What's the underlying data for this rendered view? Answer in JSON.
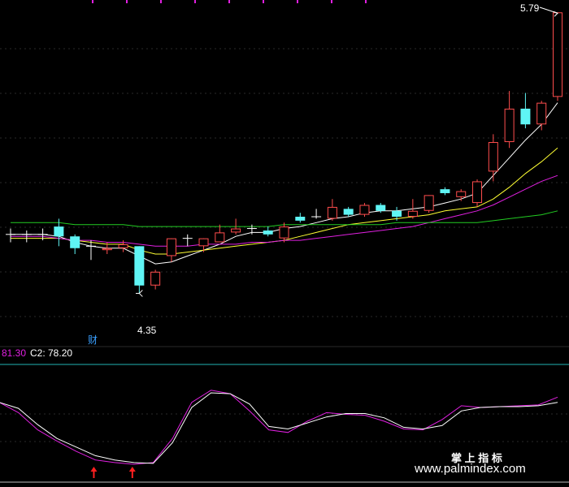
{
  "chart_data": [
    {
      "type": "candlestick",
      "title": "",
      "annotations": {
        "high_label": "5.79",
        "low_label": "4.35",
        "marker_text": "财"
      },
      "ylim": [
        4.18,
        5.82
      ],
      "candles": [
        {
          "open": 4.66,
          "high": 4.69,
          "low": 4.62,
          "close": 4.66,
          "dir": "doji"
        },
        {
          "open": 4.66,
          "high": 4.68,
          "low": 4.62,
          "close": 4.66,
          "dir": "doji"
        },
        {
          "open": 4.66,
          "high": 4.69,
          "low": 4.63,
          "close": 4.66,
          "dir": "doji"
        },
        {
          "open": 4.7,
          "high": 4.74,
          "low": 4.6,
          "close": 4.65,
          "dir": "down"
        },
        {
          "open": 4.65,
          "high": 4.66,
          "low": 4.56,
          "close": 4.59,
          "dir": "down"
        },
        {
          "open": 4.6,
          "high": 4.63,
          "low": 4.53,
          "close": 4.6,
          "dir": "doji"
        },
        {
          "open": 4.58,
          "high": 4.62,
          "low": 4.56,
          "close": 4.59,
          "dir": "up"
        },
        {
          "open": 4.59,
          "high": 4.63,
          "low": 4.57,
          "close": 4.61,
          "dir": "up"
        },
        {
          "open": 4.6,
          "high": 4.6,
          "low": 4.36,
          "close": 4.4,
          "dir": "down"
        },
        {
          "open": 4.4,
          "high": 4.48,
          "low": 4.38,
          "close": 4.47,
          "dir": "up"
        },
        {
          "open": 4.55,
          "high": 4.64,
          "low": 4.52,
          "close": 4.64,
          "dir": "up"
        },
        {
          "open": 4.64,
          "high": 4.66,
          "low": 4.6,
          "close": 4.64,
          "dir": "doji"
        },
        {
          "open": 4.6,
          "high": 4.64,
          "low": 4.57,
          "close": 4.64,
          "dir": "up"
        },
        {
          "open": 4.62,
          "high": 4.71,
          "low": 4.62,
          "close": 4.67,
          "dir": "up"
        },
        {
          "open": 4.67,
          "high": 4.74,
          "low": 4.66,
          "close": 4.69,
          "dir": "up"
        },
        {
          "open": 4.69,
          "high": 4.71,
          "low": 4.66,
          "close": 4.69,
          "dir": "doji"
        },
        {
          "open": 4.68,
          "high": 4.7,
          "low": 4.65,
          "close": 4.66,
          "dir": "down"
        },
        {
          "open": 4.64,
          "high": 4.72,
          "low": 4.62,
          "close": 4.7,
          "dir": "up"
        },
        {
          "open": 4.75,
          "high": 4.77,
          "low": 4.72,
          "close": 4.73,
          "dir": "down"
        },
        {
          "open": 4.75,
          "high": 4.79,
          "low": 4.74,
          "close": 4.75,
          "dir": "doji"
        },
        {
          "open": 4.74,
          "high": 4.84,
          "low": 4.73,
          "close": 4.8,
          "dir": "up"
        },
        {
          "open": 4.79,
          "high": 4.8,
          "low": 4.75,
          "close": 4.76,
          "dir": "down"
        },
        {
          "open": 4.76,
          "high": 4.82,
          "low": 4.75,
          "close": 4.81,
          "dir": "up"
        },
        {
          "open": 4.81,
          "high": 4.82,
          "low": 4.77,
          "close": 4.78,
          "dir": "down"
        },
        {
          "open": 4.78,
          "high": 4.8,
          "low": 4.73,
          "close": 4.75,
          "dir": "down"
        },
        {
          "open": 4.75,
          "high": 4.84,
          "low": 4.74,
          "close": 4.78,
          "dir": "up"
        },
        {
          "open": 4.78,
          "high": 4.86,
          "low": 4.77,
          "close": 4.86,
          "dir": "up"
        },
        {
          "open": 4.89,
          "high": 4.9,
          "low": 4.86,
          "close": 4.87,
          "dir": "down"
        },
        {
          "open": 4.85,
          "high": 4.89,
          "low": 4.83,
          "close": 4.88,
          "dir": "up"
        },
        {
          "open": 4.82,
          "high": 4.94,
          "low": 4.8,
          "close": 4.93,
          "dir": "up"
        },
        {
          "open": 4.98,
          "high": 5.17,
          "low": 4.93,
          "close": 5.13,
          "dir": "up"
        },
        {
          "open": 5.13,
          "high": 5.39,
          "low": 5.1,
          "close": 5.3,
          "dir": "up"
        },
        {
          "open": 5.3,
          "high": 5.38,
          "low": 5.2,
          "close": 5.22,
          "dir": "down"
        },
        {
          "open": 5.22,
          "high": 5.34,
          "low": 5.19,
          "close": 5.33,
          "dir": "up"
        },
        {
          "open": 5.36,
          "high": 5.79,
          "low": 5.34,
          "close": 5.79,
          "dir": "up"
        }
      ],
      "series": [
        {
          "color": "#ffffff",
          "values": [
            4.66,
            4.66,
            4.66,
            4.65,
            4.62,
            4.6,
            4.59,
            4.59,
            4.55,
            4.51,
            4.52,
            4.55,
            4.58,
            4.61,
            4.65,
            4.67,
            4.67,
            4.69,
            4.7,
            4.72,
            4.74,
            4.75,
            4.77,
            4.78,
            4.78,
            4.79,
            4.8,
            4.82,
            4.84,
            4.87,
            4.96,
            5.05,
            5.14,
            5.22,
            5.33
          ]
        },
        {
          "color": "#ffff33",
          "values": [
            4.64,
            4.64,
            4.64,
            4.64,
            4.63,
            4.62,
            4.61,
            4.61,
            4.58,
            4.56,
            4.56,
            4.57,
            4.58,
            4.59,
            4.6,
            4.61,
            4.62,
            4.63,
            4.65,
            4.67,
            4.69,
            4.71,
            4.72,
            4.73,
            4.74,
            4.75,
            4.76,
            4.78,
            4.79,
            4.8,
            4.84,
            4.9,
            4.97,
            5.03,
            5.1
          ]
        },
        {
          "color": "#e020e0",
          "values": [
            4.65,
            4.65,
            4.65,
            4.64,
            4.63,
            4.63,
            4.62,
            4.62,
            4.61,
            4.6,
            4.6,
            4.6,
            4.61,
            4.61,
            4.61,
            4.62,
            4.62,
            4.63,
            4.63,
            4.64,
            4.65,
            4.66,
            4.67,
            4.68,
            4.69,
            4.7,
            4.72,
            4.74,
            4.76,
            4.78,
            4.81,
            4.85,
            4.89,
            4.93,
            4.96
          ]
        },
        {
          "color": "#22cc22",
          "values": [
            4.72,
            4.72,
            4.72,
            4.72,
            4.71,
            4.71,
            4.71,
            4.71,
            4.7,
            4.7,
            4.7,
            4.7,
            4.7,
            4.7,
            4.7,
            4.7,
            4.7,
            4.71,
            4.71,
            4.71,
            4.71,
            4.71,
            4.71,
            4.71,
            4.72,
            4.72,
            4.72,
            4.72,
            4.72,
            4.72,
            4.73,
            4.74,
            4.75,
            4.76,
            4.78
          ]
        }
      ]
    },
    {
      "type": "line",
      "title": "",
      "legend": {
        "c1_value": "81.30",
        "c2_label": "C2: 78.20"
      },
      "ylim": [
        0,
        100
      ],
      "reference_line": 100,
      "series": [
        {
          "color": "#e020e0",
          "values": [
            72,
            60,
            40,
            27,
            15,
            5,
            2,
            0,
            2,
            30,
            72,
            86,
            82,
            62,
            40,
            37,
            50,
            60,
            58,
            57,
            50,
            41,
            40,
            52,
            68,
            66,
            67,
            68,
            69,
            78
          ]
        },
        {
          "color": "#ffffff",
          "values": [
            72,
            65,
            46,
            30,
            20,
            10,
            5,
            2,
            1,
            25,
            66,
            83,
            82,
            70,
            44,
            41,
            48,
            55,
            59,
            59,
            54,
            43,
            41,
            45,
            62,
            66,
            67,
            67,
            68,
            72
          ]
        }
      ],
      "signals": [
        5,
        7
      ]
    }
  ],
  "watermark": {
    "line1": "掌 上 指 标",
    "line2": "www.palmindex.com"
  }
}
